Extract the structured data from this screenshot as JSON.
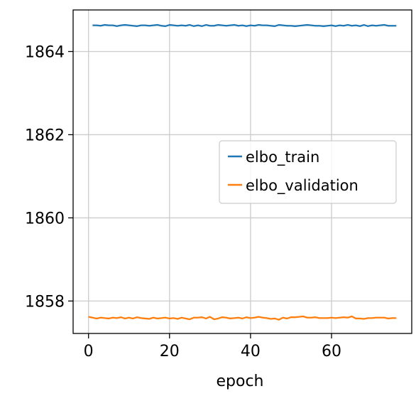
{
  "chart_data": {
    "type": "line",
    "xlabel": "epoch",
    "ylabel": "",
    "xlim": [
      -3.8,
      79.8
    ],
    "ylim": [
      1857.22,
      1865.0
    ],
    "xticks": [
      0,
      20,
      40,
      60
    ],
    "yticks": [
      1858,
      1860,
      1862,
      1864
    ],
    "grid": true,
    "legend_position": "center-right",
    "series": [
      {
        "name": "elbo_train",
        "color": "#1f77b4",
        "x": [
          1,
          2,
          3,
          4,
          5,
          6,
          7,
          8,
          9,
          10,
          11,
          12,
          13,
          14,
          15,
          16,
          17,
          18,
          19,
          20,
          21,
          22,
          23,
          24,
          25,
          26,
          27,
          28,
          29,
          30,
          31,
          32,
          33,
          34,
          35,
          36,
          37,
          38,
          39,
          40,
          41,
          42,
          43,
          44,
          45,
          46,
          47,
          48,
          49,
          50,
          51,
          52,
          53,
          54,
          55,
          56,
          57,
          58,
          59,
          60,
          61,
          62,
          63,
          64,
          65,
          66,
          67,
          68,
          69,
          70,
          71,
          72,
          73,
          74,
          75,
          76
        ],
        "values": [
          1864.63,
          1864.63,
          1864.62,
          1864.64,
          1864.63,
          1864.63,
          1864.61,
          1864.63,
          1864.64,
          1864.63,
          1864.62,
          1864.61,
          1864.63,
          1864.63,
          1864.62,
          1864.63,
          1864.64,
          1864.62,
          1864.61,
          1864.64,
          1864.63,
          1864.62,
          1864.63,
          1864.62,
          1864.64,
          1864.61,
          1864.63,
          1864.61,
          1864.64,
          1864.62,
          1864.62,
          1864.64,
          1864.63,
          1864.62,
          1864.63,
          1864.64,
          1864.62,
          1864.63,
          1864.61,
          1864.63,
          1864.62,
          1864.64,
          1864.63,
          1864.63,
          1864.62,
          1864.61,
          1864.64,
          1864.63,
          1864.62,
          1864.62,
          1864.61,
          1864.62,
          1864.63,
          1864.64,
          1864.63,
          1864.62,
          1864.62,
          1864.61,
          1864.62,
          1864.63,
          1864.61,
          1864.63,
          1864.62,
          1864.64,
          1864.62,
          1864.63,
          1864.61,
          1864.64,
          1864.61,
          1864.63,
          1864.62,
          1864.63,
          1864.64,
          1864.62,
          1864.62,
          1864.62
        ]
      },
      {
        "name": "elbo_validation",
        "color": "#ff7f0e",
        "x": [
          0,
          1,
          2,
          3,
          4,
          5,
          6,
          7,
          8,
          9,
          10,
          11,
          12,
          13,
          14,
          15,
          16,
          17,
          18,
          19,
          20,
          21,
          22,
          23,
          24,
          25,
          26,
          27,
          28,
          29,
          30,
          31,
          32,
          33,
          34,
          35,
          36,
          37,
          38,
          39,
          40,
          41,
          42,
          43,
          44,
          45,
          46,
          47,
          48,
          49,
          50,
          51,
          52,
          53,
          54,
          55,
          56,
          57,
          58,
          59,
          60,
          61,
          62,
          63,
          64,
          65,
          66,
          67,
          68,
          69,
          70,
          71,
          72,
          73,
          74,
          75,
          76
        ],
        "values": [
          1857.62,
          1857.6,
          1857.58,
          1857.6,
          1857.59,
          1857.58,
          1857.6,
          1857.59,
          1857.61,
          1857.58,
          1857.6,
          1857.58,
          1857.61,
          1857.59,
          1857.58,
          1857.57,
          1857.6,
          1857.58,
          1857.59,
          1857.6,
          1857.58,
          1857.59,
          1857.57,
          1857.6,
          1857.58,
          1857.56,
          1857.6,
          1857.6,
          1857.61,
          1857.58,
          1857.62,
          1857.56,
          1857.58,
          1857.61,
          1857.6,
          1857.58,
          1857.59,
          1857.6,
          1857.58,
          1857.61,
          1857.59,
          1857.6,
          1857.62,
          1857.6,
          1857.59,
          1857.57,
          1857.58,
          1857.55,
          1857.6,
          1857.58,
          1857.61,
          1857.61,
          1857.62,
          1857.63,
          1857.6,
          1857.6,
          1857.61,
          1857.59,
          1857.59,
          1857.59,
          1857.6,
          1857.59,
          1857.6,
          1857.61,
          1857.6,
          1857.63,
          1857.58,
          1857.58,
          1857.57,
          1857.59,
          1857.59,
          1857.6,
          1857.6,
          1857.6,
          1857.58,
          1857.59,
          1857.59
        ]
      }
    ]
  }
}
